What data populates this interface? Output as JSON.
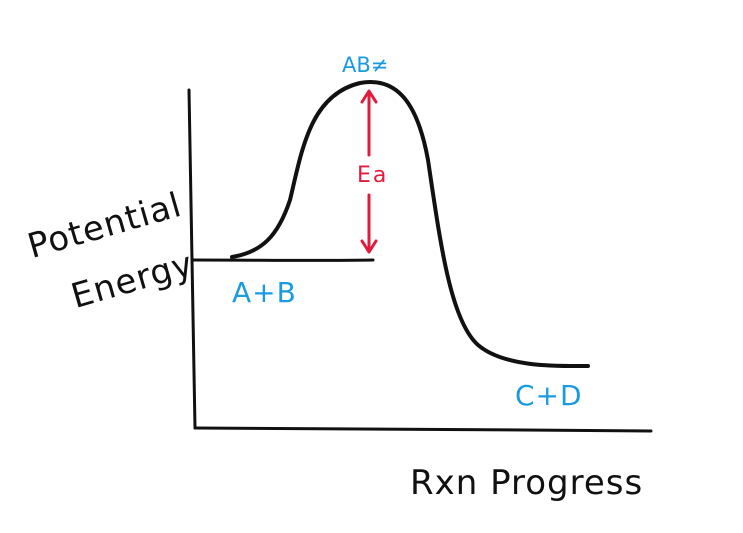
{
  "axes": {
    "y_label_line1": "Potential",
    "y_label_line2": "Energy",
    "x_label": "Rxn Progress"
  },
  "states": {
    "reactants": "A+B",
    "transition_state": "AB≠",
    "products": "C+D"
  },
  "activation_energy": {
    "label": "Ea"
  },
  "colors": {
    "ink": "#111111",
    "state_labels": "#1a9be0",
    "activation_energy": "#e21b3c"
  }
}
